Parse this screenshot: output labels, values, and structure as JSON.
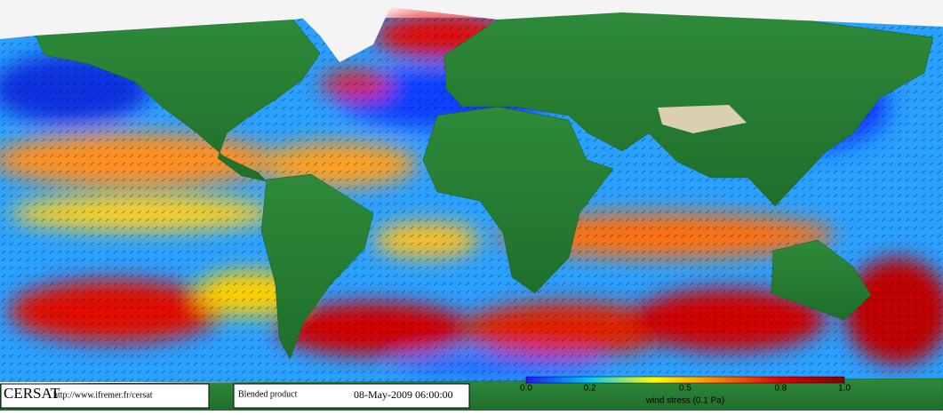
{
  "footer": {
    "logo": "CERSAT",
    "url": "http://www.ifremer.fr/cersat",
    "product": "Blended product",
    "datetime": "08-May-2009 06:00:00"
  },
  "colorbar": {
    "label": "wind stress (0.1 Pa)",
    "lim": [
      0,
      1
    ],
    "ticks": [
      {
        "value": 0,
        "label": "0.0"
      },
      0.2,
      0.5,
      0.8,
      {
        "value": 1,
        "label": "1.0"
      }
    ],
    "colors": [
      "#1a1aff",
      "#00c8ff",
      "#ffff00",
      "#ff8000",
      "#e00000",
      "#800000"
    ]
  }
}
